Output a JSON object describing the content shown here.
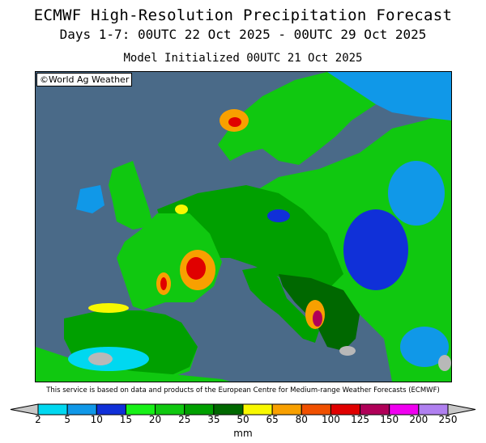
{
  "header": {
    "title": "ECMWF High-Resolution Precipitation Forecast",
    "period": "Days 1-7: 00UTC 22 Oct 2025 - 00UTC 29 Oct 2025",
    "initialized": "Model Initialized 00UTC 21 Oct 2025"
  },
  "map": {
    "copyright": "©World Ag Weather",
    "region": "Europe",
    "colors": {
      "sea": "#4a6a88",
      "dry": "#b8b8b8"
    }
  },
  "footer": {
    "credit": "This service is based on data and products of the European Centre for Medium-range Weather Forecasts (ECMWF)"
  },
  "legend": {
    "unit": "mm",
    "labels": [
      "2",
      "5",
      "10",
      "15",
      "20",
      "25",
      "35",
      "50",
      "65",
      "80",
      "100",
      "125",
      "150",
      "200",
      "250"
    ],
    "colors": [
      "#c8c8c8",
      "#00d8f0",
      "#1098e8",
      "#1030d8",
      "#18f018",
      "#10c810",
      "#00a000",
      "#006800",
      "#f8f800",
      "#f8a000",
      "#f05000",
      "#e00000",
      "#b00058",
      "#f000f0",
      "#b080f0",
      "#c8c8c8"
    ]
  }
}
